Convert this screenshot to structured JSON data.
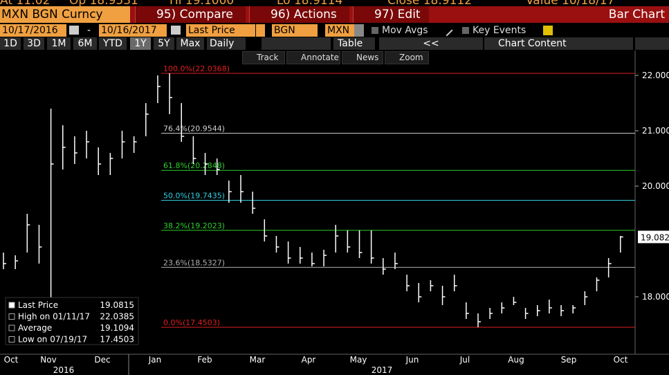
{
  "quote_bar": {
    "items": [
      "At 11:02",
      "Op 18.9531",
      "Hi 19.1000",
      "Lo 18.9114",
      "Close 18.9112",
      "Value 10/18/17"
    ]
  },
  "title_bar": {
    "security": "MXN BGN Curncy",
    "buttons": [
      "95) Compare",
      "96) Actions",
      "97) Edit"
    ],
    "view": "Bar Chart"
  },
  "settings_bar": {
    "start_date": "10/17/2016",
    "separator": "-",
    "end_date": "10/16/2017",
    "field": "Last Price",
    "source": "BGN",
    "currency": "MXN",
    "options": [
      "Mov Avgs",
      "Key Events"
    ]
  },
  "period_bar": {
    "periods": [
      "1D",
      "3D",
      "1M",
      "6M",
      "YTD",
      "1Y",
      "5Y",
      "Max"
    ],
    "active_period": 5,
    "frequency": "Daily",
    "table": "Table",
    "back": "<<",
    "chart_content": "Chart Content"
  },
  "tools": [
    "Track",
    "Annotate",
    "News",
    "Zoom"
  ],
  "chart": {
    "type": "ohlc",
    "color": "#ffffff",
    "ylim": [
      17.0,
      22.4
    ],
    "yticks": [
      {
        "value": 18,
        "label": "18.000"
      },
      {
        "value": 20,
        "label": "20.000"
      },
      {
        "value": 21,
        "label": "21.000"
      },
      {
        "value": 22,
        "label": "22.000"
      }
    ],
    "last_price_tag": 19.082,
    "high": [
      18.8,
      18.75,
      19.5,
      19.3,
      21.4,
      21.1,
      20.9,
      21.0,
      20.7,
      20.6,
      21.0,
      20.9,
      21.5,
      22.0,
      22.0385,
      21.5,
      20.9,
      20.6,
      20.5,
      20.1,
      20.2,
      19.9,
      19.4,
      19.1,
      19.0,
      18.9,
      18.8,
      18.85,
      19.3,
      19.2,
      19.2,
      19.2,
      18.7,
      18.8,
      18.4,
      18.25,
      18.3,
      18.2,
      18.4,
      17.9,
      17.7,
      17.8,
      17.9,
      18.0,
      17.8,
      17.85,
      17.95,
      17.85,
      17.85,
      18.1,
      18.35,
      18.7,
      19.1
    ],
    "low": [
      18.5,
      18.5,
      18.8,
      18.6,
      17.9,
      20.3,
      20.4,
      20.5,
      20.2,
      20.2,
      20.5,
      20.6,
      20.9,
      21.5,
      21.3,
      20.8,
      20.4,
      20.2,
      20.2,
      19.7,
      19.7,
      19.5,
      19.0,
      18.8,
      18.6,
      18.6,
      18.55,
      18.55,
      18.8,
      18.8,
      18.7,
      18.6,
      18.4,
      18.5,
      18.1,
      17.9,
      18.1,
      17.85,
      18.1,
      17.6,
      17.4503,
      17.6,
      17.7,
      17.85,
      17.6,
      17.65,
      17.7,
      17.65,
      17.7,
      17.85,
      18.1,
      18.35,
      18.8
    ],
    "close": [
      18.6,
      18.65,
      19.3,
      18.9,
      20.4,
      20.7,
      20.6,
      20.8,
      20.4,
      20.5,
      20.8,
      20.8,
      21.3,
      21.8,
      21.6,
      20.9,
      20.5,
      20.4,
      20.3,
      19.9,
      19.9,
      19.6,
      19.1,
      18.9,
      18.7,
      18.7,
      18.6,
      18.75,
      19.1,
      18.9,
      18.8,
      18.7,
      18.5,
      18.6,
      18.2,
      18.0,
      18.2,
      18.0,
      18.2,
      17.7,
      17.55,
      17.7,
      17.8,
      17.9,
      17.7,
      17.75,
      17.8,
      17.75,
      17.8,
      18.0,
      18.3,
      18.6,
      19.0815
    ],
    "fib_levels": [
      {
        "value": 22.0368,
        "label": "100.0%(22.0368)",
        "color": "#e02020"
      },
      {
        "value": 20.9544,
        "label": "76.4%(20.9544)",
        "color": "#d0d0d0"
      },
      {
        "value": 20.2848,
        "label": "61.8%(20.2848)",
        "color": "#30d030"
      },
      {
        "value": 19.7435,
        "label": "50.0%(19.7435)",
        "color": "#30d0e0"
      },
      {
        "value": 19.2023,
        "label": "38.2%(19.2023)",
        "color": "#30d030"
      },
      {
        "value": 18.5327,
        "label": "23.6%(18.5327)",
        "color": "#b0b0b0"
      },
      {
        "value": 17.4503,
        "label": "0.0%(17.4503)",
        "color": "#e02020"
      }
    ],
    "months": [
      "Oct",
      "Nov",
      "Dec",
      "Jan",
      "Feb",
      "Mar",
      "Apr",
      "May",
      "Jun",
      "Jul",
      "Aug",
      "Sep",
      "Oct"
    ],
    "years": [
      "2016",
      "2017"
    ],
    "legend": [
      {
        "label": "Last Price",
        "value": 19.0815
      },
      {
        "label": "High on 01/11/17",
        "value": 22.0385
      },
      {
        "label": "Average",
        "value": 19.1094
      },
      {
        "label": "Low on 07/19/17",
        "value": 17.4503
      }
    ]
  }
}
